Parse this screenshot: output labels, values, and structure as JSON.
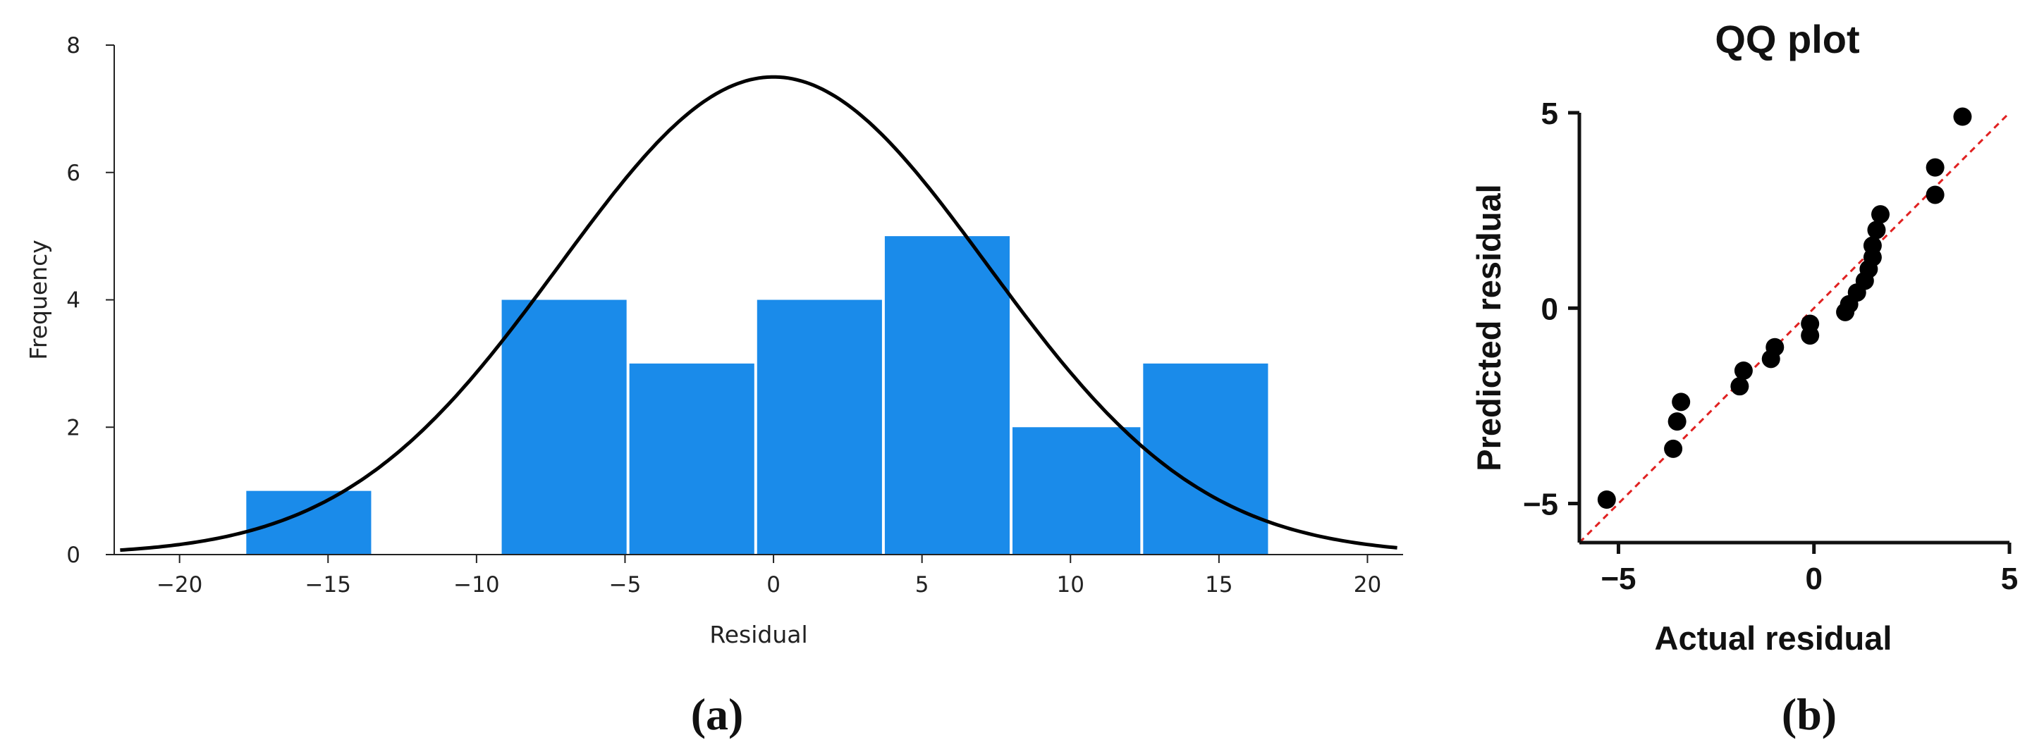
{
  "chart_data": [
    {
      "type": "bar",
      "xlabel": "Residual",
      "ylabel": "Frequency",
      "xlim": [
        -22.2,
        21.2
      ],
      "ylim": [
        0,
        8
      ],
      "xticks": [
        -20,
        -15,
        -10,
        -5,
        0,
        5,
        10,
        15,
        20
      ],
      "yticks": [
        0,
        2,
        4,
        6,
        8
      ],
      "bin_edges": [
        -17.8,
        -13.5,
        -9.2,
        -4.9,
        -0.6,
        3.7,
        8.0,
        12.4,
        16.7
      ],
      "values": [
        1,
        0,
        4,
        3,
        4,
        5,
        2,
        3
      ],
      "bar_color": "#1a8bea",
      "overlay_curve": {
        "type": "normal",
        "mean": 0,
        "peak": 7.5,
        "sd": 7.2,
        "color": "#000000"
      },
      "panel_label": "(a)"
    },
    {
      "type": "scatter",
      "title": "QQ plot",
      "xlabel": "Actual residual",
      "ylabel": "Predicted residual",
      "xlim": [
        -6,
        5
      ],
      "ylim": [
        -6,
        5
      ],
      "xticks": [
        -5,
        0,
        5
      ],
      "yticks": [
        -5,
        0,
        5
      ],
      "points": [
        [
          -5.3,
          -4.9
        ],
        [
          -3.6,
          -3.6
        ],
        [
          -3.5,
          -2.9
        ],
        [
          -3.4,
          -2.4
        ],
        [
          -1.9,
          -2.0
        ],
        [
          -1.8,
          -1.6
        ],
        [
          -1.1,
          -1.3
        ],
        [
          -1.0,
          -1.0
        ],
        [
          -0.1,
          -0.7
        ],
        [
          -0.1,
          -0.4
        ],
        [
          0.8,
          -0.1
        ],
        [
          0.9,
          0.1
        ],
        [
          1.1,
          0.4
        ],
        [
          1.3,
          0.7
        ],
        [
          1.4,
          1.0
        ],
        [
          1.5,
          1.3
        ],
        [
          1.5,
          1.6
        ],
        [
          1.6,
          2.0
        ],
        [
          1.7,
          2.4
        ],
        [
          3.1,
          2.9
        ],
        [
          3.1,
          3.6
        ],
        [
          3.8,
          4.9
        ]
      ],
      "point_color": "#000000",
      "reference_line": {
        "from": [
          -6,
          -6
        ],
        "to": [
          5,
          5
        ],
        "color": "#e02020",
        "style": "dashed"
      },
      "panel_label": "(b)"
    }
  ]
}
